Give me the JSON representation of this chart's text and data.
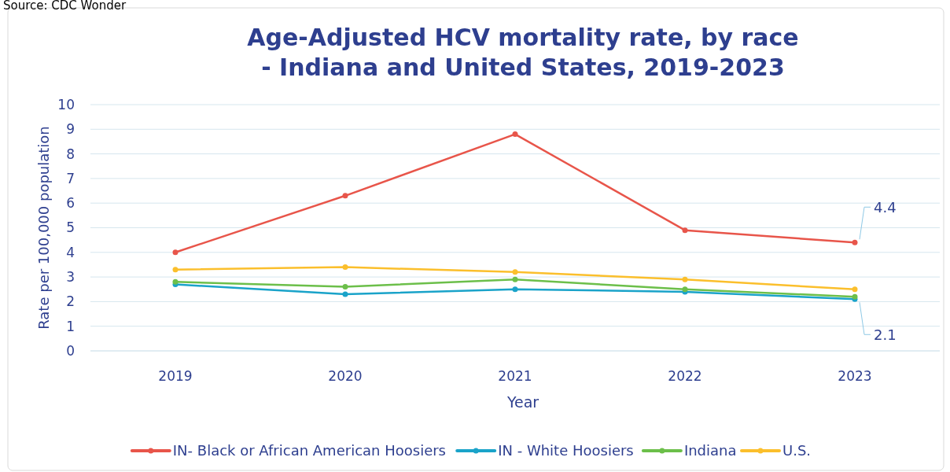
{
  "chart_data": {
    "type": "line",
    "title": "Age-Adjusted HCV mortality rate, by race\n- Indiana and United States, 2019-2023",
    "xlabel": "Year",
    "ylabel": "Rate per 100,000 population",
    "annotations": [
      "Source: CDC Wonder"
    ],
    "categories": [
      "2019",
      "2020",
      "2021",
      "2022",
      "2023"
    ],
    "series": [
      {
        "name": "IN- Black or African American Hoosiers",
        "color": "#e8554a",
        "values": [
          4.0,
          6.3,
          8.8,
          4.9,
          4.4
        ],
        "value_labels": [
          null,
          null,
          null,
          null,
          "4.4"
        ]
      },
      {
        "name": "IN - White Hoosiers",
        "color": "#1aa3c9",
        "values": [
          2.7,
          2.3,
          2.5,
          2.4,
          2.1
        ],
        "value_labels": [
          null,
          null,
          null,
          null,
          "2.1"
        ]
      },
      {
        "name": "Indiana",
        "color": "#6cbf4a",
        "values": [
          2.8,
          2.6,
          2.9,
          2.5,
          2.2
        ]
      },
      {
        "name": "U.S.",
        "color": "#fbbf2c",
        "values": [
          3.3,
          3.4,
          3.2,
          2.9,
          2.5
        ]
      }
    ],
    "ylim": [
      0,
      10
    ],
    "yticks": [
      0,
      1,
      2,
      3,
      4,
      5,
      6,
      7,
      8,
      9,
      10
    ],
    "grid": "y",
    "legend": "bottom",
    "marker": "circle",
    "line_style": "solid"
  }
}
